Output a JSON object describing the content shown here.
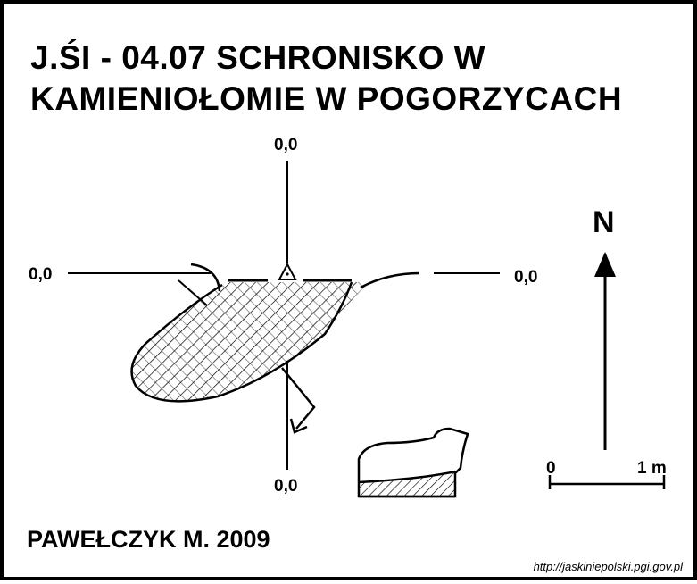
{
  "title": {
    "line1": "J.ŚI - 04.07  SCHRONISKO W",
    "line2": "KAMIENIOŁOMIE W POGORZYCACH"
  },
  "section_labels": {
    "top": "0,0",
    "left": "0,0",
    "right": "0,0",
    "bottom": "0,0"
  },
  "north_label": "N",
  "scale": {
    "start_label": "0",
    "end_label": "1 m"
  },
  "author": "PAWEŁCZYK M. 2009",
  "source_url": "http://jaskiniepolski.pgi.gov.pl"
}
